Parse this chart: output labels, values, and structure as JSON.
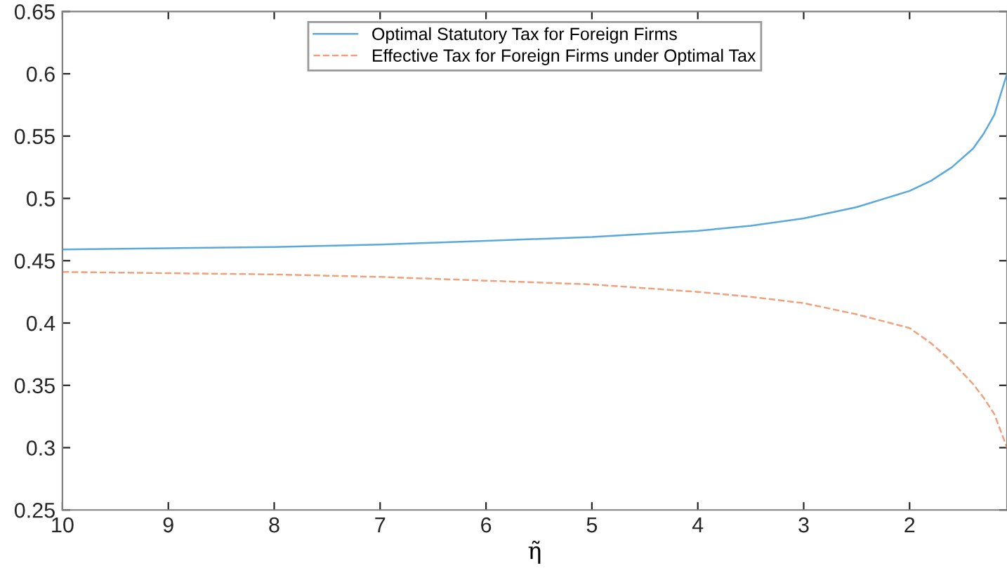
{
  "chart_data": {
    "type": "line",
    "xlabel": "η̃",
    "x": [
      10,
      9,
      8,
      7,
      6,
      5,
      4,
      3.5,
      3,
      2.5,
      2,
      1.8,
      1.6,
      1.4,
      1.3,
      1.2,
      1.08
    ],
    "series": [
      {
        "name": "Optimal Statutory Tax for Foreign Firms",
        "color": "#5aa9dc",
        "line_style": "solid",
        "values": [
          0.459,
          0.46,
          0.461,
          0.463,
          0.466,
          0.469,
          0.474,
          0.478,
          0.484,
          0.493,
          0.506,
          0.514,
          0.525,
          0.54,
          0.552,
          0.567,
          0.6
        ]
      },
      {
        "name": "Effective Tax for Foreign Firms under Optimal Tax",
        "color": "#f0a07a",
        "line_style": "dashed",
        "values": [
          0.441,
          0.44,
          0.439,
          0.437,
          0.434,
          0.431,
          0.425,
          0.421,
          0.416,
          0.407,
          0.396,
          0.384,
          0.369,
          0.351,
          0.34,
          0.327,
          0.3
        ]
      }
    ],
    "xlim": [
      10,
      1.08
    ],
    "xticks": [
      10,
      9,
      8,
      7,
      6,
      5,
      4,
      3,
      2
    ],
    "ylim": [
      0.25,
      0.65
    ],
    "yticks": [
      0.25,
      0.3,
      0.35,
      0.4,
      0.45,
      0.5,
      0.55,
      0.6,
      0.65
    ],
    "grid": false,
    "legend": "top",
    "marker": "none"
  }
}
